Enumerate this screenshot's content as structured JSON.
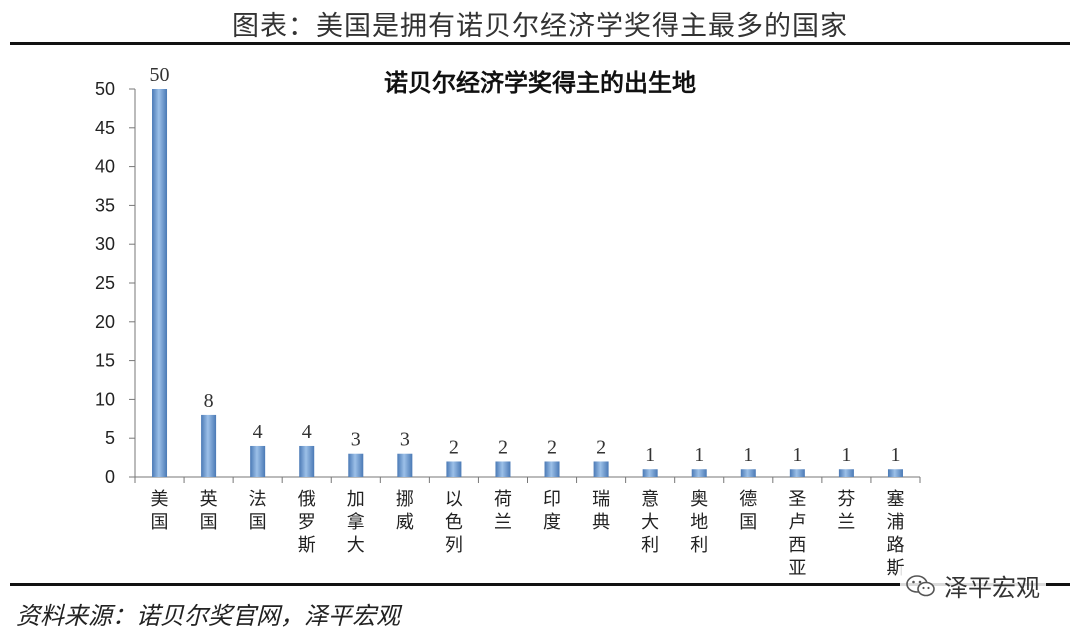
{
  "page": {
    "title": "图表：美国是拥有诺贝尔经济学奖得主最多的国家",
    "source": "资料来源：诺贝尔奖官网，泽平宏观",
    "watermark": "泽平宏观",
    "watermark_icon": "wechat-icon"
  },
  "chart_data": {
    "type": "bar",
    "title": "诺贝尔经济学奖得主的出生地",
    "xlabel": "",
    "ylabel": "",
    "categories": [
      "美国",
      "英国",
      "法国",
      "俄罗斯",
      "加拿大",
      "挪威",
      "以色列",
      "荷兰",
      "印度",
      "瑞典",
      "意大利",
      "奥地利",
      "德国",
      "圣卢西亚",
      "芬兰",
      "塞浦路斯"
    ],
    "values": [
      50,
      8,
      4,
      4,
      3,
      3,
      2,
      2,
      2,
      2,
      1,
      1,
      1,
      1,
      1,
      1
    ],
    "yticks": [
      0,
      5,
      10,
      15,
      20,
      25,
      30,
      35,
      40,
      45,
      50
    ],
    "ylim": [
      0,
      50
    ],
    "grid": false,
    "legend": "none",
    "bar_color": "#4a79b5",
    "bar_highlight": "#9cc0e8",
    "data_labels": true
  }
}
